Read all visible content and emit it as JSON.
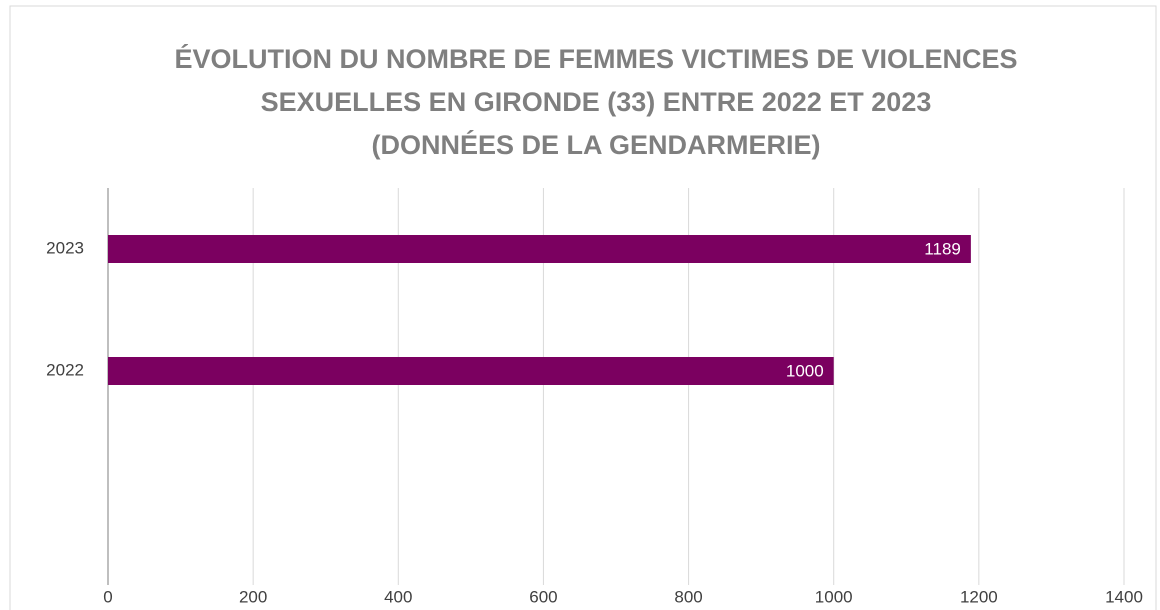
{
  "chart_data": {
    "type": "bar",
    "orientation": "horizontal",
    "title": [
      "ÉVOLUTION DU NOMBRE DE FEMMES VICTIMES DE VIOLENCES",
      "SEXUELLES EN GIRONDE (33) ENTRE 2022 ET 2023",
      "(DONNÉES DE LA GENDARMERIE)"
    ],
    "categories": [
      "2023",
      "2022"
    ],
    "values": [
      1189,
      1000
    ],
    "color": "#7b0060",
    "xlim": [
      0,
      1400
    ],
    "xticks": [
      0,
      200,
      400,
      600,
      800,
      1000,
      1200,
      1400
    ],
    "grid": true
  }
}
